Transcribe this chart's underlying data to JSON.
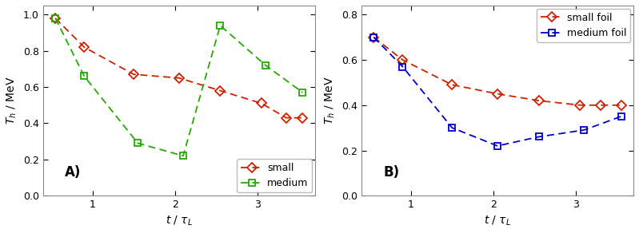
{
  "panel_A": {
    "small_x": [
      0.55,
      0.9,
      1.5,
      2.05,
      2.55,
      3.05,
      3.35,
      3.55
    ],
    "small_y": [
      0.98,
      0.82,
      0.67,
      0.65,
      0.58,
      0.51,
      0.43,
      0.43
    ],
    "medium_x": [
      0.55,
      0.9,
      1.55,
      2.1,
      2.55,
      3.1,
      3.55
    ],
    "medium_y": [
      0.98,
      0.66,
      0.29,
      0.22,
      0.94,
      0.72,
      0.57
    ],
    "small_color": "#cc2200",
    "medium_color": "#22aa00",
    "ylim": [
      0,
      1.05
    ],
    "xlim": [
      0.4,
      3.7
    ],
    "xticks": [
      1,
      2,
      3
    ],
    "yticks": [
      0,
      0.2,
      0.4,
      0.6,
      0.8,
      1.0
    ],
    "label_A": "A)",
    "legend_small": "small",
    "legend_medium": "medium"
  },
  "panel_B": {
    "small_x": [
      0.55,
      0.9,
      1.5,
      2.05,
      2.55,
      3.05,
      3.3,
      3.55
    ],
    "small_y": [
      0.7,
      0.6,
      0.49,
      0.45,
      0.42,
      0.4,
      0.4,
      0.4
    ],
    "medium_x": [
      0.55,
      0.9,
      1.5,
      2.05,
      2.55,
      3.1,
      3.55
    ],
    "medium_y": [
      0.7,
      0.57,
      0.3,
      0.22,
      0.26,
      0.29,
      0.35
    ],
    "small_color": "#cc2200",
    "medium_color": "#0000cc",
    "ylim": [
      0,
      0.84
    ],
    "xlim": [
      0.4,
      3.7
    ],
    "xticks": [
      1,
      2,
      3
    ],
    "yticks": [
      0,
      0.2,
      0.4,
      0.6,
      0.8
    ],
    "label_B": "B)",
    "legend_small": "small foil",
    "legend_medium": "medium foil"
  },
  "background_color": "#ffffff",
  "figsize": [
    7.99,
    2.92
  ],
  "dpi": 100
}
